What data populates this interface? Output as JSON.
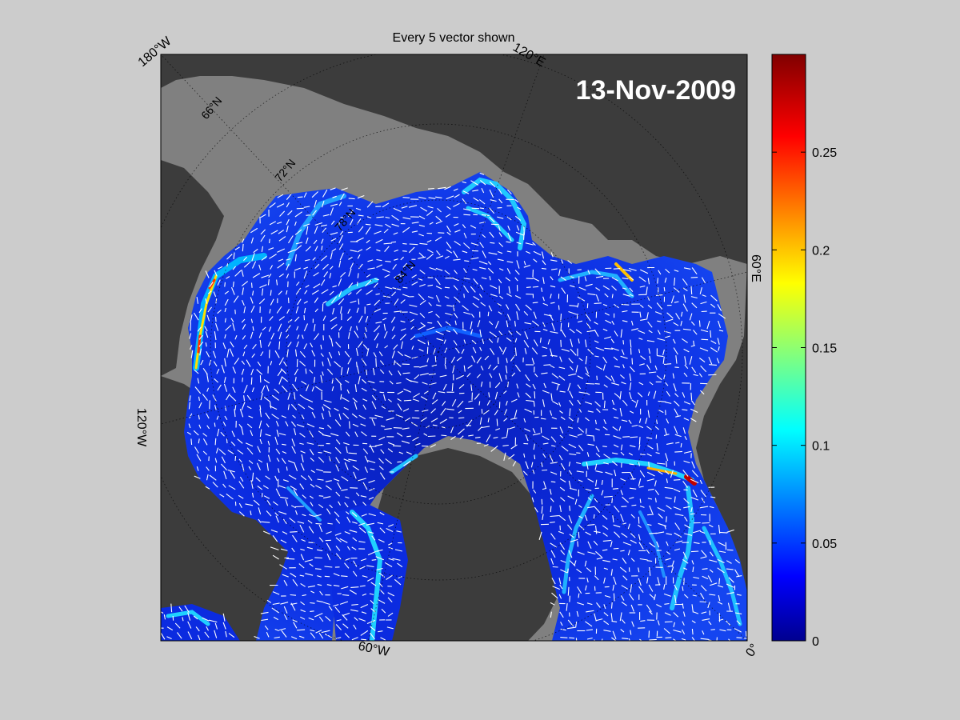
{
  "figure": {
    "title": "Every 5 vector shown",
    "date": "13-Nov-2009",
    "background_color": "#cccccc",
    "land_color": "#3c3c3c",
    "no_data_color": "#808080",
    "vector_color": "#ffffff"
  },
  "map": {
    "projection": "polar-stereographic-north",
    "parallel_labels": [
      "66°N",
      "72°N",
      "78°N",
      "84°N"
    ],
    "meridian_labels": [
      {
        "text": "180°W",
        "meridian": "180W"
      },
      {
        "text": "120°E",
        "meridian": "120E"
      },
      {
        "text": "60°E",
        "meridian": "60E"
      },
      {
        "text": "0°",
        "meridian": "0"
      },
      {
        "text": "60°W",
        "meridian": "60W"
      },
      {
        "text": "120°W",
        "meridian": "120W"
      }
    ]
  },
  "colorbar": {
    "colormap": "jet",
    "range": [
      0,
      0.3
    ],
    "ticks": [
      "0",
      "0.05",
      "0.1",
      "0.15",
      "0.2",
      "0.25"
    ],
    "tick_values": [
      0,
      0.05,
      0.1,
      0.15,
      0.2,
      0.25
    ],
    "colors": [
      "#00008f",
      "#0000ff",
      "#0080ff",
      "#00ffff",
      "#80ff80",
      "#ffff00",
      "#ff8000",
      "#ff0000",
      "#800000"
    ]
  }
}
